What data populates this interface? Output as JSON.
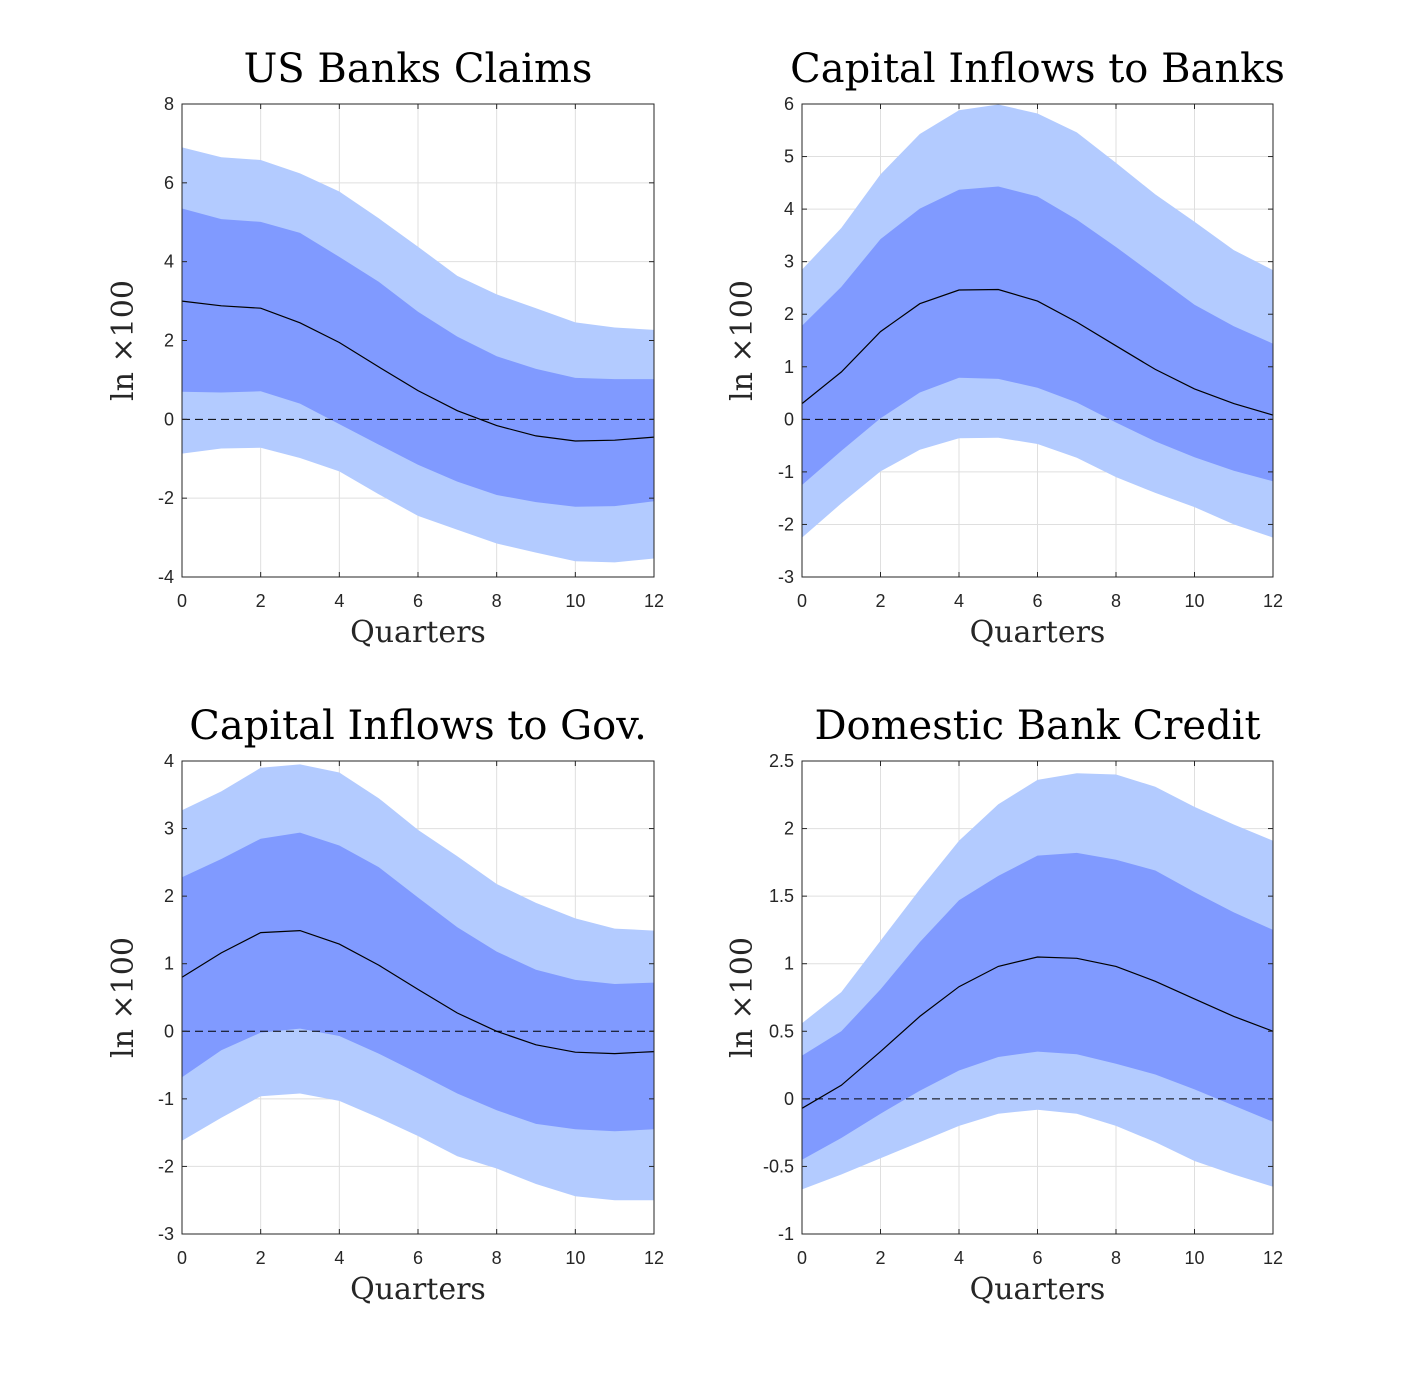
{
  "figure": {
    "colors": {
      "outer_band": "#b3cbff",
      "inner_band": "#809aff",
      "median_line": "#000000",
      "zero_line": "#000000",
      "grid": "#dfdfdf",
      "axes": "#262626"
    }
  },
  "chart_data": [
    {
      "type": "area",
      "title": "US Banks Claims",
      "xlabel": "Quarters",
      "ylabel": "ln ×100",
      "xlim": [
        0,
        12
      ],
      "ylim": [
        -4,
        8
      ],
      "xticks": [
        0,
        2,
        4,
        6,
        8,
        10,
        12
      ],
      "yticks": [
        -4,
        -2,
        0,
        2,
        4,
        6,
        8
      ],
      "ytick_labels": [
        "-4",
        "-2",
        "0",
        "2",
        "4",
        "6",
        "8"
      ],
      "grid": true,
      "zero_line": true,
      "x": [
        0,
        1,
        2,
        3,
        4,
        5,
        6,
        7,
        8,
        9,
        10,
        11,
        12
      ],
      "median": [
        3.0,
        2.88,
        2.82,
        2.45,
        1.95,
        1.33,
        0.73,
        0.22,
        -0.16,
        -0.42,
        -0.55,
        -0.53,
        -0.45
      ],
      "inner_upper": [
        5.35,
        5.08,
        5.01,
        4.73,
        4.12,
        3.49,
        2.73,
        2.1,
        1.6,
        1.28,
        1.05,
        1.02,
        1.02
      ],
      "inner_lower": [
        0.7,
        0.68,
        0.71,
        0.4,
        -0.12,
        -0.64,
        -1.15,
        -1.58,
        -1.92,
        -2.1,
        -2.22,
        -2.2,
        -2.08
      ],
      "outer_upper": [
        6.9,
        6.65,
        6.58,
        6.24,
        5.78,
        5.1,
        4.38,
        3.64,
        3.17,
        2.82,
        2.46,
        2.33,
        2.27
      ],
      "outer_lower": [
        -0.87,
        -0.74,
        -0.72,
        -0.98,
        -1.32,
        -1.9,
        -2.45,
        -2.8,
        -3.15,
        -3.38,
        -3.6,
        -3.63,
        -3.53
      ]
    },
    {
      "type": "area",
      "title": "Capital Inflows to Banks",
      "xlabel": "Quarters",
      "ylabel": "ln ×100",
      "xlim": [
        0,
        12
      ],
      "ylim": [
        -3,
        6
      ],
      "xticks": [
        0,
        2,
        4,
        6,
        8,
        10,
        12
      ],
      "yticks": [
        -3,
        -2,
        -1,
        0,
        1,
        2,
        3,
        4,
        5,
        6
      ],
      "ytick_labels": [
        "-3",
        "-2",
        "-1",
        "0",
        "1",
        "2",
        "3",
        "4",
        "5",
        "6"
      ],
      "grid": true,
      "zero_line": true,
      "x": [
        0,
        1,
        2,
        3,
        4,
        5,
        6,
        7,
        8,
        9,
        10,
        11,
        12
      ],
      "median": [
        0.3,
        0.9,
        1.67,
        2.2,
        2.46,
        2.47,
        2.25,
        1.85,
        1.4,
        0.95,
        0.58,
        0.3,
        0.08
      ],
      "inner_upper": [
        1.78,
        2.52,
        3.43,
        4.01,
        4.37,
        4.43,
        4.24,
        3.8,
        3.28,
        2.73,
        2.18,
        1.77,
        1.44
      ],
      "inner_lower": [
        -1.25,
        -0.6,
        0.02,
        0.51,
        0.79,
        0.77,
        0.6,
        0.32,
        -0.06,
        -0.42,
        -0.72,
        -0.98,
        -1.18
      ],
      "outer_upper": [
        2.85,
        3.64,
        4.66,
        5.43,
        5.88,
        5.99,
        5.82,
        5.46,
        4.88,
        4.28,
        3.76,
        3.22,
        2.84
      ],
      "outer_lower": [
        -2.25,
        -1.6,
        -0.99,
        -0.58,
        -0.36,
        -0.35,
        -0.47,
        -0.73,
        -1.1,
        -1.4,
        -1.67,
        -2.0,
        -2.25
      ]
    },
    {
      "type": "area",
      "title": "Capital Inflows to Gov.",
      "xlabel": "Quarters",
      "ylabel": "ln ×100",
      "xlim": [
        0,
        12
      ],
      "ylim": [
        -3,
        4
      ],
      "xticks": [
        0,
        2,
        4,
        6,
        8,
        10,
        12
      ],
      "yticks": [
        -3,
        -2,
        -1,
        0,
        1,
        2,
        3,
        4
      ],
      "ytick_labels": [
        "-3",
        "-2",
        "-1",
        "0",
        "1",
        "2",
        "3",
        "4"
      ],
      "grid": true,
      "zero_line": true,
      "x": [
        0,
        1,
        2,
        3,
        4,
        5,
        6,
        7,
        8,
        9,
        10,
        11,
        12
      ],
      "median": [
        0.8,
        1.16,
        1.46,
        1.49,
        1.29,
        0.98,
        0.62,
        0.27,
        0.0,
        -0.2,
        -0.31,
        -0.33,
        -0.3
      ],
      "inner_upper": [
        2.28,
        2.55,
        2.85,
        2.94,
        2.75,
        2.43,
        1.98,
        1.54,
        1.18,
        0.91,
        0.76,
        0.7,
        0.72
      ],
      "inner_lower": [
        -0.68,
        -0.28,
        -0.02,
        0.04,
        -0.07,
        -0.33,
        -0.62,
        -0.92,
        -1.17,
        -1.37,
        -1.45,
        -1.48,
        -1.45
      ],
      "outer_upper": [
        3.27,
        3.55,
        3.9,
        3.95,
        3.83,
        3.45,
        2.98,
        2.59,
        2.18,
        1.9,
        1.67,
        1.52,
        1.49
      ],
      "outer_lower": [
        -1.62,
        -1.28,
        -0.96,
        -0.92,
        -1.03,
        -1.28,
        -1.55,
        -1.85,
        -2.03,
        -2.26,
        -2.44,
        -2.5,
        -2.5
      ]
    },
    {
      "type": "area",
      "title": "Domestic Bank Credit",
      "xlabel": "Quarters",
      "ylabel": "ln ×100",
      "xlim": [
        0,
        12
      ],
      "ylim": [
        -1,
        2.5
      ],
      "xticks": [
        0,
        2,
        4,
        6,
        8,
        10,
        12
      ],
      "yticks": [
        -1,
        -0.5,
        0,
        0.5,
        1,
        1.5,
        2,
        2.5
      ],
      "ytick_labels": [
        "-1",
        "-0.5",
        "0",
        "0.5",
        "1",
        "1.5",
        "2",
        "2.5"
      ],
      "grid": true,
      "zero_line": true,
      "x": [
        0,
        1,
        2,
        3,
        4,
        5,
        6,
        7,
        8,
        9,
        10,
        11,
        12
      ],
      "median": [
        -0.07,
        0.1,
        0.35,
        0.61,
        0.83,
        0.98,
        1.05,
        1.04,
        0.98,
        0.87,
        0.74,
        0.61,
        0.5
      ],
      "inner_upper": [
        0.32,
        0.5,
        0.81,
        1.16,
        1.47,
        1.65,
        1.8,
        1.82,
        1.77,
        1.69,
        1.53,
        1.38,
        1.25
      ],
      "inner_lower": [
        -0.45,
        -0.29,
        -0.11,
        0.06,
        0.21,
        0.31,
        0.35,
        0.33,
        0.26,
        0.18,
        0.07,
        -0.05,
        -0.17
      ],
      "outer_upper": [
        0.56,
        0.79,
        1.17,
        1.55,
        1.91,
        2.18,
        2.36,
        2.41,
        2.4,
        2.31,
        2.16,
        2.03,
        1.91
      ],
      "outer_lower": [
        -0.67,
        -0.56,
        -0.44,
        -0.32,
        -0.2,
        -0.11,
        -0.08,
        -0.11,
        -0.2,
        -0.32,
        -0.46,
        -0.56,
        -0.65
      ]
    }
  ]
}
